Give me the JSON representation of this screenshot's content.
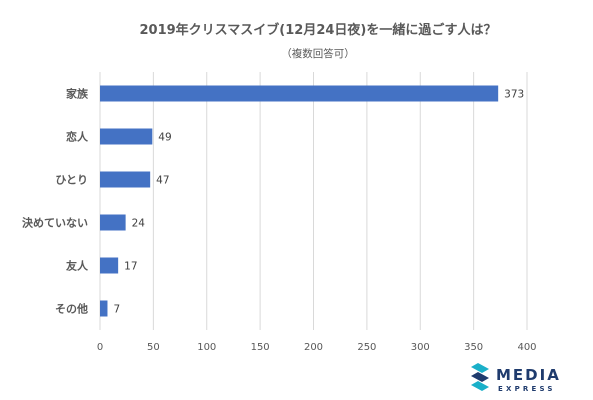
{
  "chart_data": {
    "type": "bar",
    "orientation": "horizontal",
    "title": "2019年クリスマスイブ(12月24日夜)を一緒に過ごす人は？",
    "subtitle": "（複数回答可）",
    "categories": [
      "家族",
      "恋人",
      "ひとり",
      "決めていない",
      "友人",
      "その他"
    ],
    "values": [
      373,
      49,
      47,
      24,
      17,
      7
    ],
    "xlim": [
      0,
      400
    ],
    "xticks": [
      0,
      50,
      100,
      150,
      200,
      250,
      300,
      350,
      400
    ],
    "grid": true,
    "bar_color": "#4472c4"
  },
  "logo": {
    "line1": "MEDIA",
    "line2": "EXPRESS",
    "color": "#1f3b6d",
    "accent": "#1ab0c9"
  }
}
